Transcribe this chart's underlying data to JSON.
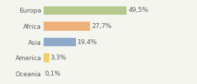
{
  "categories": [
    "Europa",
    "Africa",
    "Asia",
    "America",
    "Oceania"
  ],
  "values": [
    49.5,
    27.7,
    19.4,
    3.3,
    0.1
  ],
  "labels": [
    "49,5%",
    "27,7%",
    "19,4%",
    "3,3%",
    "0,1%"
  ],
  "bar_colors": [
    "#b5c98e",
    "#f0b07a",
    "#8eaac8",
    "#f0d060",
    "#d4d4d4"
  ],
  "background_color": "#f5f5f0",
  "label_fontsize": 6.5,
  "tick_fontsize": 6.5,
  "xlim": [
    0,
    70
  ],
  "bar_height": 0.55
}
